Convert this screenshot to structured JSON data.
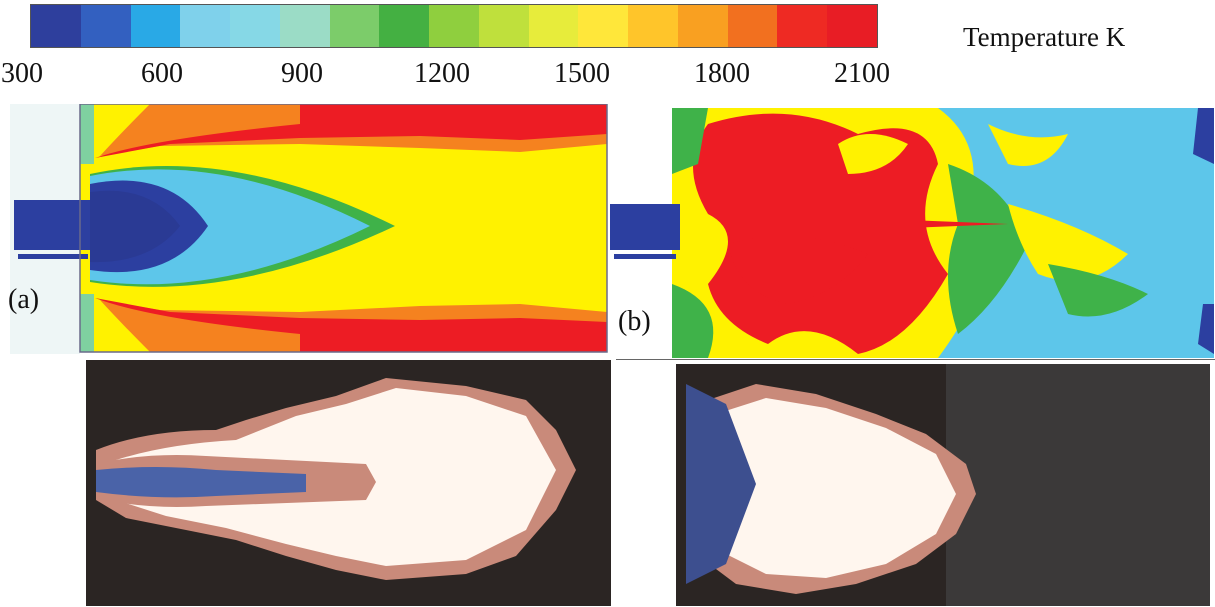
{
  "colorbar": {
    "title": "Temperature K",
    "ticks": [
      "300",
      "600",
      "900",
      "1200",
      "1500",
      "1800",
      "2100"
    ],
    "colors": [
      "#2e3f9d",
      "#3360c0",
      "#29a9e6",
      "#7fd1eb",
      "#86d8e6",
      "#9bdcc6",
      "#7ccc6a",
      "#44b042",
      "#8fcf3e",
      "#bfe03c",
      "#e7ec3b",
      "#ffe73a",
      "#ffc52a",
      "#f9a021",
      "#f2701f",
      "#ee2a23",
      "#e81d25"
    ]
  },
  "panels": {
    "a_label": "(a)",
    "b_label": "(b)",
    "palette": {
      "blue": "#2c3fa0",
      "cyan": "#5dc6ea",
      "green": "#3fb249",
      "yellow": "#fff200",
      "orange": "#f5821f",
      "red": "#ed1c24",
      "flame_white": "#fff6ee",
      "flame_bg": "#2b2523"
    }
  }
}
